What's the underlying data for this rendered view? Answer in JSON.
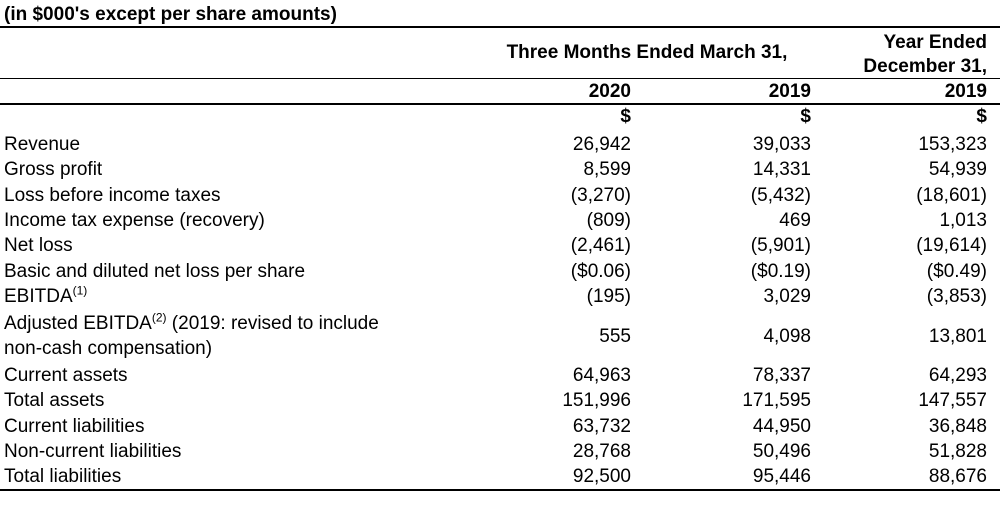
{
  "header": {
    "units_note": "(in $000's except per share amounts)",
    "three_months_label": "Three Months Ended March 31,",
    "year_ended_line1": "Year Ended",
    "year_ended_line2": "December 31,",
    "col1_year": "2020",
    "col2_year": "2019",
    "col3_year": "2019",
    "currency": "$"
  },
  "rows": [
    {
      "label": "Revenue",
      "v1": "26,942",
      "v2": "39,033",
      "v3": "153,323"
    },
    {
      "label": "Gross profit",
      "v1": "8,599",
      "v2": "14,331",
      "v3": "54,939"
    },
    {
      "label": "Loss before income taxes",
      "v1": "(3,270)",
      "v2": "(5,432)",
      "v3": "(18,601)"
    },
    {
      "label": "Income tax expense (recovery)",
      "v1": "(809)",
      "v2": "469",
      "v3": "1,013"
    },
    {
      "label": "Net loss",
      "v1": "(2,461)",
      "v2": "(5,901)",
      "v3": "(19,614)"
    },
    {
      "label": "Basic and diluted net loss per share",
      "v1": "($0.06)",
      "v2": "($0.19)",
      "v3": "($0.49)"
    },
    {
      "label": "EBITDA",
      "sup": "(1)",
      "v1": "(195)",
      "v2": "3,029",
      "v3": "(3,853)"
    },
    {
      "label": "Adjusted EBITDA",
      "sup": "(2)",
      "label_rest": " (2019: revised to include",
      "label_line2": "non-cash compensation)",
      "v1": "555",
      "v2": "4,098",
      "v3": "13,801"
    },
    {
      "label": "Current assets",
      "v1": "64,963",
      "v2": "78,337",
      "v3": "64,293"
    },
    {
      "label": "Total assets",
      "v1": "151,996",
      "v2": "171,595",
      "v3": "147,557"
    },
    {
      "label": "Current liabilities",
      "v1": "63,732",
      "v2": "44,950",
      "v3": "36,848"
    },
    {
      "label": "Non-current liabilities",
      "v1": "28,768",
      "v2": "50,496",
      "v3": "51,828"
    },
    {
      "label": "Total liabilities",
      "v1": "92,500",
      "v2": "95,446",
      "v3": "88,676"
    }
  ]
}
